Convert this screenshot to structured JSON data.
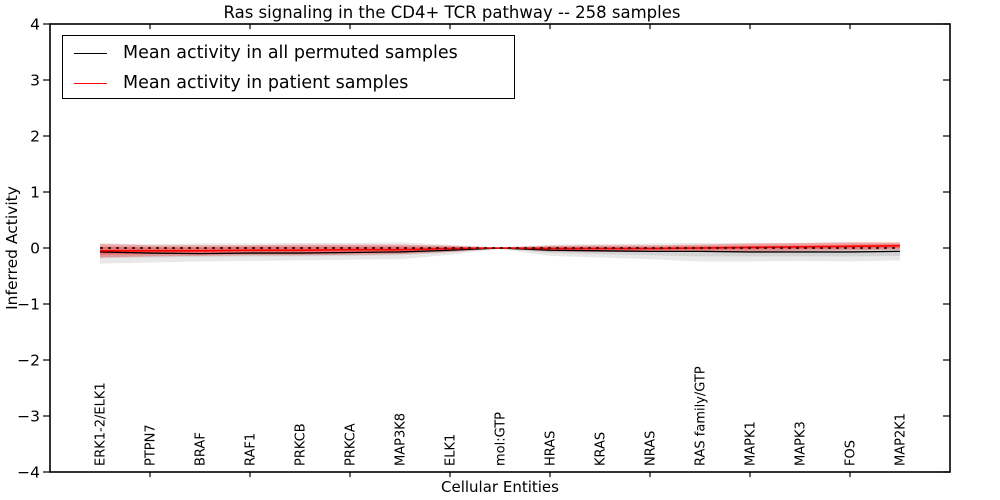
{
  "chart_data": {
    "type": "line",
    "title": "Ras signaling in the CD4+ TCR pathway -- 258 samples",
    "xlabel": "Cellular Entities",
    "ylabel": "Inferred Activity",
    "ylim": [
      -4,
      4
    ],
    "yticks": [
      4,
      3,
      2,
      1,
      0,
      -1,
      -2,
      -3,
      -4
    ],
    "xtick_indices": [
      1,
      3,
      5,
      7,
      9,
      11,
      13,
      15
    ],
    "grid": false,
    "legend_position": "upper left",
    "background_color": "#ffffff",
    "axis_color": "#000000",
    "categories": [
      "ERK1-2/ELK1",
      "PTPN7",
      "BRAF",
      "RAF1",
      "PRKCB",
      "PRKCA",
      "MAP3K8",
      "ELK1",
      "mol:GTP",
      "HRAS",
      "KRAS",
      "NRAS",
      "RAS family/GTP",
      "MAPK1",
      "MAPK3",
      "FOS",
      "MAP2K1"
    ],
    "series": [
      {
        "name": "Mean activity in all permuted samples",
        "color": "#000000",
        "style": "solid",
        "values": [
          -0.07,
          -0.09,
          -0.1,
          -0.09,
          -0.09,
          -0.08,
          -0.07,
          -0.04,
          0.0,
          -0.04,
          -0.05,
          -0.06,
          -0.06,
          -0.07,
          -0.07,
          -0.07,
          -0.06
        ]
      },
      {
        "name": "Mean activity in patient samples",
        "color": "#ff0000",
        "style": "solid",
        "values": [
          -0.05,
          -0.05,
          -0.05,
          -0.04,
          -0.04,
          -0.03,
          -0.03,
          -0.01,
          0.0,
          -0.01,
          -0.01,
          -0.01,
          0.0,
          0.01,
          0.02,
          0.03,
          0.04
        ]
      }
    ],
    "zero_line": {
      "value": 0,
      "color": "#000000",
      "style": "dashed"
    },
    "bands": [
      {
        "name": "permuted-outer",
        "color": "#000000",
        "opacity": 0.09,
        "upper": [
          0.09,
          0.07,
          0.08,
          0.08,
          0.09,
          0.09,
          0.1,
          0.06,
          0.01,
          0.06,
          0.07,
          0.08,
          0.09,
          0.09,
          0.09,
          0.1,
          0.09
        ],
        "lower": [
          -0.28,
          -0.26,
          -0.24,
          -0.23,
          -0.22,
          -0.21,
          -0.2,
          -0.12,
          -0.02,
          -0.14,
          -0.17,
          -0.2,
          -0.24,
          -0.24,
          -0.23,
          -0.24,
          -0.22
        ]
      },
      {
        "name": "permuted-inner",
        "color": "#000000",
        "opacity": 0.09,
        "upper": [
          0.03,
          0.02,
          0.02,
          0.03,
          0.03,
          0.04,
          0.04,
          0.03,
          0.0,
          0.03,
          0.03,
          0.03,
          0.04,
          0.04,
          0.04,
          0.04,
          0.04
        ],
        "lower": [
          -0.18,
          -0.17,
          -0.16,
          -0.15,
          -0.15,
          -0.14,
          -0.13,
          -0.08,
          -0.01,
          -0.09,
          -0.11,
          -0.13,
          -0.15,
          -0.15,
          -0.15,
          -0.15,
          -0.14
        ]
      },
      {
        "name": "patient-outer",
        "color": "#ff0000",
        "opacity": 0.28,
        "upper": [
          0.07,
          0.05,
          0.05,
          0.05,
          0.06,
          0.06,
          0.06,
          0.04,
          0.01,
          0.04,
          0.05,
          0.05,
          0.06,
          0.08,
          0.09,
          0.1,
          0.1
        ],
        "lower": [
          -0.17,
          -0.15,
          -0.14,
          -0.13,
          -0.13,
          -0.12,
          -0.11,
          -0.07,
          -0.01,
          -0.06,
          -0.07,
          -0.07,
          -0.07,
          -0.06,
          -0.05,
          -0.04,
          -0.03
        ]
      },
      {
        "name": "patient-inner",
        "color": "#ff0000",
        "opacity": 0.28,
        "upper": [
          0.02,
          0.01,
          0.01,
          0.02,
          0.02,
          0.02,
          0.02,
          0.02,
          0.0,
          0.02,
          0.02,
          0.02,
          0.03,
          0.04,
          0.05,
          0.06,
          0.07
        ],
        "lower": [
          -0.12,
          -0.11,
          -0.1,
          -0.1,
          -0.09,
          -0.09,
          -0.08,
          -0.04,
          -0.01,
          -0.04,
          -0.04,
          -0.04,
          -0.04,
          -0.03,
          -0.02,
          -0.01,
          0.0
        ]
      }
    ]
  },
  "legend": {
    "items": [
      {
        "label": "Mean activity in all permuted samples",
        "color": "#000000"
      },
      {
        "label": "Mean activity in patient samples",
        "color": "#ff0000"
      }
    ]
  }
}
